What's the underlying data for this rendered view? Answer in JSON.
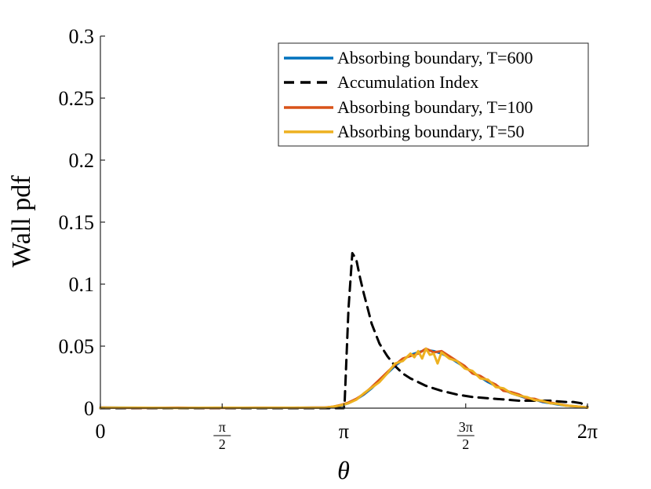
{
  "chart_data": {
    "type": "line",
    "title": "",
    "xlabel": "θ",
    "ylabel": "Wall pdf",
    "xlim": [
      0,
      6.2832
    ],
    "ylim": [
      0,
      0.3
    ],
    "grid": false,
    "legend_position": "top-right",
    "x_ticks": [
      {
        "value": 0,
        "label": "0"
      },
      {
        "value": 1.5708,
        "num": "π",
        "den": "2"
      },
      {
        "value": 3.1416,
        "label": "π"
      },
      {
        "value": 4.7124,
        "num": "3π",
        "den": "2"
      },
      {
        "value": 6.2832,
        "label": "2π"
      }
    ],
    "y_ticks": [
      {
        "value": 0,
        "label": "0"
      },
      {
        "value": 0.05,
        "label": "0.05"
      },
      {
        "value": 0.1,
        "label": "0.1"
      },
      {
        "value": 0.15,
        "label": "0.15"
      },
      {
        "value": 0.2,
        "label": "0.2"
      },
      {
        "value": 0.25,
        "label": "0.25"
      },
      {
        "value": 0.3,
        "label": "0.3"
      }
    ],
    "series": [
      {
        "name": "Absorbing boundary, T=600",
        "color": "#0072BD",
        "style": "solid",
        "x": [
          0,
          0.5,
          1.0,
          1.5,
          2.0,
          2.5,
          2.9,
          3.0,
          3.1,
          3.2,
          3.3,
          3.4,
          3.5,
          3.6,
          3.7,
          3.8,
          3.9,
          4.0,
          4.1,
          4.2,
          4.3,
          4.4,
          4.5,
          4.6,
          4.7,
          4.8,
          4.9,
          5.0,
          5.1,
          5.2,
          5.3,
          5.4,
          5.5,
          5.6,
          5.7,
          5.8,
          5.9,
          6.0,
          6.1,
          6.2,
          6.2832
        ],
        "y": [
          0.0005,
          0.0003,
          0.0003,
          0.0003,
          0.0003,
          0.0003,
          0.0005,
          0.001,
          0.002,
          0.004,
          0.007,
          0.011,
          0.016,
          0.022,
          0.028,
          0.034,
          0.039,
          0.043,
          0.045,
          0.047,
          0.046,
          0.044,
          0.041,
          0.037,
          0.033,
          0.029,
          0.025,
          0.021,
          0.018,
          0.015,
          0.012,
          0.01,
          0.008,
          0.007,
          0.005,
          0.004,
          0.003,
          0.002,
          0.0015,
          0.001,
          0.0005
        ]
      },
      {
        "name": "Accumulation Index",
        "color": "#000000",
        "style": "dashed",
        "x": [
          0,
          3.0,
          3.14,
          3.15,
          3.2,
          3.25,
          3.3,
          3.35,
          3.4,
          3.45,
          3.5,
          3.6,
          3.7,
          3.8,
          3.9,
          4.0,
          4.2,
          4.4,
          4.6,
          4.8,
          5.0,
          5.2,
          5.4,
          5.6,
          5.8,
          6.0,
          6.1,
          6.2,
          6.2832
        ],
        "y": [
          0,
          0,
          0,
          0.003,
          0.08,
          0.125,
          0.12,
          0.105,
          0.092,
          0.08,
          0.068,
          0.052,
          0.042,
          0.034,
          0.028,
          0.024,
          0.018,
          0.014,
          0.011,
          0.009,
          0.008,
          0.007,
          0.006,
          0.006,
          0.006,
          0.005,
          0.005,
          0.004,
          0.001
        ]
      },
      {
        "name": "Absorbing boundary, T=100",
        "color": "#D95319",
        "style": "solid",
        "x": [
          0,
          0.5,
          1.0,
          1.5,
          2.0,
          2.5,
          2.9,
          3.0,
          3.1,
          3.2,
          3.3,
          3.4,
          3.5,
          3.6,
          3.7,
          3.8,
          3.9,
          4.0,
          4.1,
          4.2,
          4.3,
          4.4,
          4.5,
          4.6,
          4.7,
          4.8,
          4.9,
          5.0,
          5.1,
          5.2,
          5.3,
          5.4,
          5.5,
          5.6,
          5.7,
          5.8,
          5.9,
          6.0,
          6.1,
          6.2,
          6.2832
        ],
        "y": [
          0.0005,
          0.0002,
          0.0004,
          0.0002,
          0.0004,
          0.0003,
          0.0006,
          0.0012,
          0.0025,
          0.0045,
          0.0075,
          0.0115,
          0.017,
          0.023,
          0.029,
          0.035,
          0.04,
          0.042,
          0.044,
          0.048,
          0.045,
          0.046,
          0.042,
          0.038,
          0.034,
          0.028,
          0.026,
          0.022,
          0.019,
          0.014,
          0.013,
          0.011,
          0.008,
          0.0075,
          0.0055,
          0.0045,
          0.0035,
          0.0022,
          0.0016,
          0.0011,
          0.0004
        ]
      },
      {
        "name": "Absorbing boundary, T=50",
        "color": "#EDB120",
        "style": "solid",
        "x": [
          0,
          0.5,
          1.0,
          1.5,
          2.0,
          2.5,
          2.9,
          3.0,
          3.1,
          3.2,
          3.3,
          3.4,
          3.5,
          3.6,
          3.7,
          3.8,
          3.9,
          4.0,
          4.05,
          4.1,
          4.15,
          4.2,
          4.25,
          4.3,
          4.35,
          4.4,
          4.5,
          4.6,
          4.7,
          4.8,
          4.9,
          5.0,
          5.1,
          5.2,
          5.3,
          5.4,
          5.5,
          5.6,
          5.7,
          5.8,
          5.9,
          6.0,
          6.1,
          6.2,
          6.2832
        ],
        "y": [
          0.0004,
          0.0004,
          0.0002,
          0.0004,
          0.0003,
          0.0004,
          0.0004,
          0.0012,
          0.0022,
          0.004,
          0.0068,
          0.012,
          0.0165,
          0.021,
          0.028,
          0.036,
          0.038,
          0.044,
          0.041,
          0.046,
          0.04,
          0.048,
          0.043,
          0.044,
          0.036,
          0.045,
          0.04,
          0.038,
          0.032,
          0.03,
          0.024,
          0.023,
          0.017,
          0.016,
          0.012,
          0.01,
          0.009,
          0.0065,
          0.006,
          0.004,
          0.0035,
          0.002,
          0.0018,
          0.001,
          0.0004
        ]
      }
    ]
  }
}
